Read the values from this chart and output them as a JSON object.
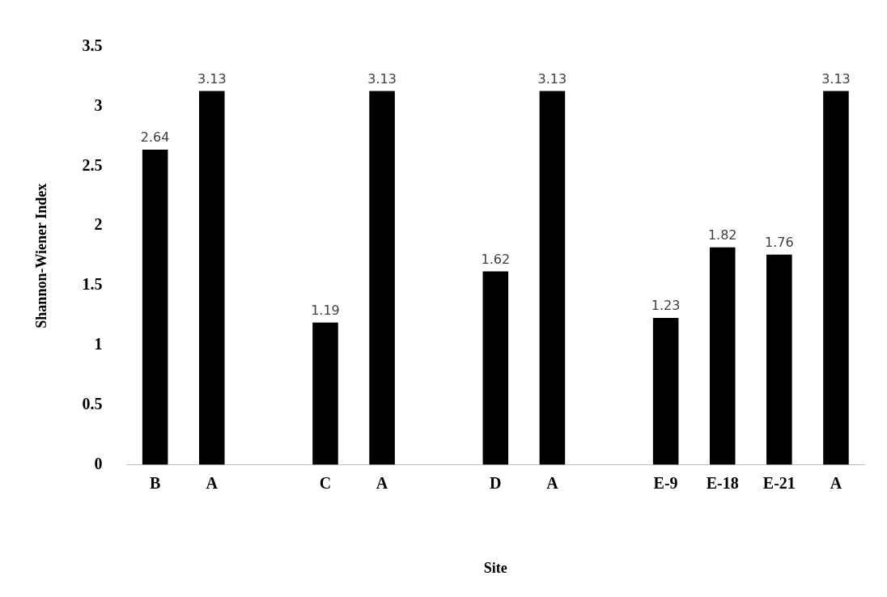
{
  "chart_data": {
    "type": "bar",
    "xlabel": "Site",
    "ylabel": "Shannon-Wiener Index",
    "categories": [
      "B",
      "A",
      null,
      "C",
      "A",
      null,
      "D",
      "A",
      null,
      "E-9",
      "E-18",
      "E-21",
      "A"
    ],
    "values": [
      2.64,
      3.13,
      null,
      1.19,
      3.13,
      null,
      1.62,
      3.13,
      null,
      1.23,
      1.82,
      1.76,
      3.13
    ],
    "color": "#000000",
    "ylim": [
      0,
      3.5
    ],
    "yticks": [
      0,
      0.5,
      1,
      1.5,
      2,
      2.5,
      3,
      3.5
    ],
    "grid": false,
    "legend": false,
    "data_labels": true
  }
}
